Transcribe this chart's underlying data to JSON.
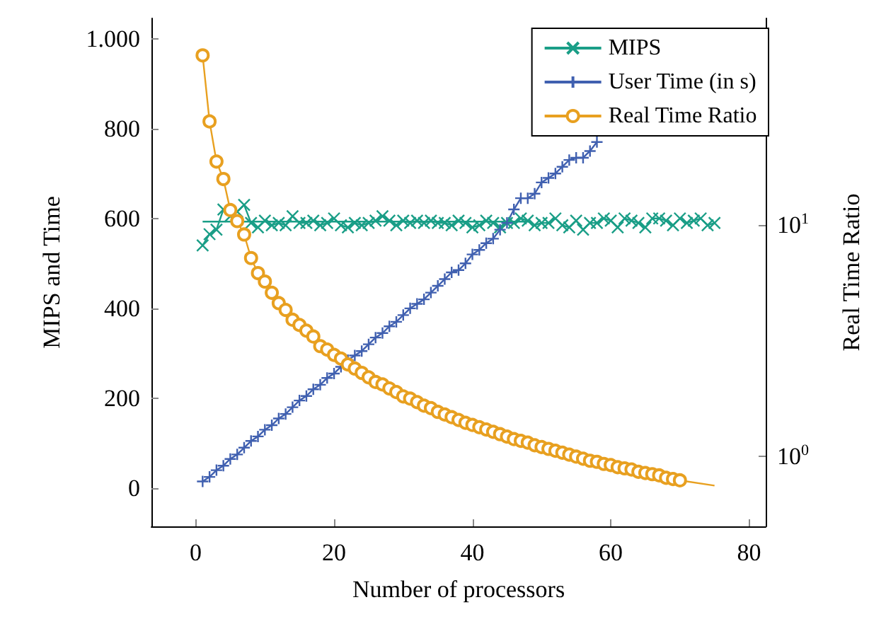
{
  "chart_data": {
    "type": "line",
    "xlabel": "Number of processors",
    "ylabel": "MIPS and Time",
    "y2label": "Real Time Ratio",
    "xlim": [
      -6.4,
      82.4
    ],
    "xticks": [
      0,
      20,
      40,
      60,
      80
    ],
    "ylim": [
      -85,
      1045
    ],
    "yticks": [
      0,
      200,
      400,
      600,
      800,
      {
        "value": 1000,
        "label": "1.000"
      }
    ],
    "y2lim": [
      0.5,
      78
    ],
    "y2ticks": [
      {
        "value": 1,
        "label": "10$^{0}$"
      },
      {
        "value": 10,
        "label": "10$^{1}$"
      }
    ],
    "log": "y2",
    "grid": false,
    "legend": "top right",
    "line_style": "solid",
    "series": [
      {
        "name": "MIPS",
        "color": "#1a9e87",
        "marker": "x",
        "x": [
          1,
          2,
          3,
          4,
          5,
          6,
          7,
          8,
          9,
          10,
          11,
          12,
          13,
          14,
          15,
          16,
          17,
          18,
          19,
          20,
          21,
          22,
          23,
          24,
          25,
          26,
          27,
          28,
          29,
          30,
          31,
          32,
          33,
          34,
          35,
          36,
          37,
          38,
          39,
          40,
          41,
          42,
          43,
          44,
          45,
          46,
          47,
          48,
          49,
          50,
          51,
          52,
          53,
          54,
          55,
          56,
          57,
          58,
          59,
          60,
          61,
          62,
          63,
          64,
          65,
          66,
          67,
          68,
          69,
          70,
          71,
          72,
          73,
          74,
          75
        ],
        "values": [
          540,
          565,
          575,
          620,
          605,
          615,
          630,
          590,
          580,
          595,
          585,
          590,
          585,
          605,
          590,
          590,
          595,
          585,
          590,
          600,
          585,
          580,
          590,
          585,
          590,
          595,
          605,
          595,
          585,
          595,
          590,
          595,
          590,
          595,
          590,
          590,
          585,
          595,
          590,
          580,
          585,
          595,
          590,
          580,
          590,
          590,
          600,
          595,
          585,
          590,
          590,
          600,
          585,
          580,
          595,
          575,
          590,
          590,
          600,
          595,
          580,
          600,
          595,
          590,
          580,
          600,
          600,
          595,
          585,
          600,
          590,
          595,
          600,
          585,
          590
        ]
      },
      {
        "color": "#1a9e87",
        "marker": "none",
        "x": [
          1,
          48.5
        ],
        "values": [
          593,
          593
        ]
      },
      {
        "name": "User Time (in s)",
        "color": "#4060b0",
        "marker": "cross",
        "x": [
          1,
          2,
          3,
          4,
          5,
          6,
          7,
          8,
          9,
          10,
          11,
          12,
          13,
          14,
          15,
          16,
          17,
          18,
          19,
          20,
          21,
          22,
          23,
          24,
          25,
          26,
          27,
          28,
          29,
          30,
          31,
          32,
          33,
          34,
          35,
          36,
          37,
          38,
          39,
          40,
          41,
          42,
          43,
          44,
          45,
          46,
          47,
          48,
          49,
          50,
          51,
          52,
          53,
          54,
          55,
          56,
          57,
          58
        ],
        "values": [
          15,
          25,
          40,
          50,
          65,
          75,
          90,
          105,
          115,
          130,
          140,
          155,
          165,
          180,
          195,
          205,
          220,
          230,
          245,
          255,
          270,
          285,
          295,
          305,
          320,
          335,
          345,
          360,
          370,
          385,
          400,
          410,
          420,
          435,
          450,
          465,
          480,
          485,
          500,
          520,
          530,
          545,
          555,
          575,
          590,
          620,
          645,
          645,
          655,
          680,
          690,
          700,
          715,
          730,
          735,
          735,
          750,
          770
        ]
      },
      {
        "name": "Real Time Ratio",
        "color": "#e8a020",
        "marker": "circle",
        "axis": "y2",
        "x": [
          1,
          2,
          3,
          4,
          5,
          6,
          7,
          8,
          9,
          10,
          11,
          12,
          13,
          14,
          15,
          16,
          17,
          18,
          19,
          20,
          21,
          22,
          23,
          24,
          25,
          26,
          27,
          28,
          29,
          30,
          31,
          32,
          33,
          34,
          35,
          36,
          37,
          38,
          39,
          40,
          41,
          42,
          43,
          44,
          45,
          46,
          47,
          48,
          49,
          50,
          51,
          52,
          53,
          54,
          55,
          56,
          57,
          58,
          59,
          60,
          61,
          62,
          63,
          64,
          65,
          66,
          67,
          68,
          69,
          70
        ],
        "values": [
          54,
          28,
          18.8,
          15.8,
          11.6,
          10.4,
          9.1,
          7.2,
          6.2,
          5.7,
          5.1,
          4.6,
          4.3,
          3.9,
          3.7,
          3.5,
          3.3,
          3.0,
          2.9,
          2.75,
          2.65,
          2.5,
          2.4,
          2.3,
          2.2,
          2.1,
          2.05,
          1.97,
          1.9,
          1.82,
          1.78,
          1.72,
          1.66,
          1.62,
          1.56,
          1.52,
          1.48,
          1.44,
          1.4,
          1.37,
          1.34,
          1.31,
          1.28,
          1.25,
          1.22,
          1.19,
          1.17,
          1.15,
          1.12,
          1.1,
          1.08,
          1.06,
          1.04,
          1.02,
          1.0,
          0.98,
          0.96,
          0.95,
          0.93,
          0.92,
          0.9,
          0.89,
          0.88,
          0.86,
          0.85,
          0.84,
          0.83,
          0.81,
          0.8,
          0.79
        ]
      },
      {
        "color": "#e8a020",
        "marker": "none",
        "axis": "y2",
        "x": [
          70,
          75
        ],
        "values": [
          0.79,
          0.75
        ]
      }
    ]
  }
}
